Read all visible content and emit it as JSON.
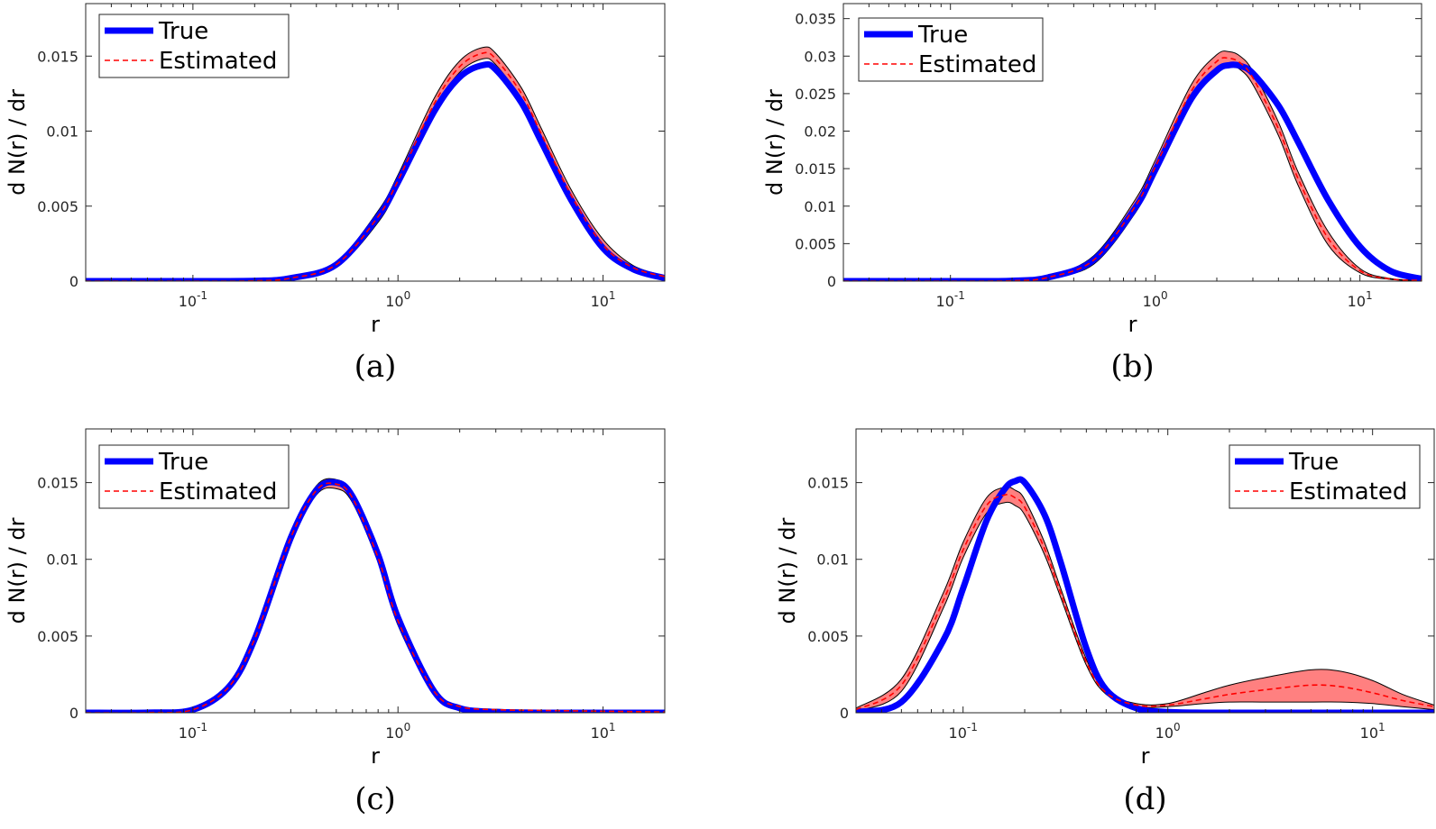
{
  "chart_data": [
    {
      "type": "line",
      "panel_label": "(a)",
      "xlabel": "r",
      "ylabel": "d N(r) / dr",
      "x_scale": "log",
      "xlim": [
        0.03,
        20
      ],
      "ylim": [
        0,
        0.0185
      ],
      "y_ticks": [
        "0",
        "0.005",
        "0.01",
        "0.015"
      ],
      "x_ticks": [
        {
          "base": "10",
          "exp": "-1",
          "value": 0.1
        },
        {
          "base": "10",
          "exp": "0",
          "value": 1
        },
        {
          "base": "10",
          "exp": "1",
          "value": 10
        }
      ],
      "legend_position": "top-left",
      "grid": false,
      "x": [
        0.03,
        0.05,
        0.1,
        0.2,
        0.3,
        0.5,
        0.8,
        1.0,
        1.5,
        2.0,
        2.6,
        3.0,
        4.0,
        5.0,
        7.0,
        10,
        14,
        20
      ],
      "series": [
        {
          "name": "True",
          "color": "#0000ff",
          "style": "solid",
          "values": [
            0,
            0,
            0,
            2e-05,
            0.0002,
            0.0011,
            0.0043,
            0.0066,
            0.0113,
            0.0136,
            0.0144,
            0.0141,
            0.0119,
            0.0093,
            0.0054,
            0.0022,
            0.0008,
            0.0002
          ]
        },
        {
          "name": "Estimated",
          "color": "#ff0000",
          "style": "dashed",
          "values": [
            0,
            0,
            0,
            2e-05,
            0.0002,
            0.0011,
            0.0043,
            0.0067,
            0.0118,
            0.0143,
            0.0152,
            0.0148,
            0.0125,
            0.0098,
            0.0057,
            0.0024,
            0.0009,
            0.0003
          ]
        }
      ],
      "band_halfwidth_fraction": 0.025,
      "band_color": "#ff8080"
    },
    {
      "type": "line",
      "panel_label": "(b)",
      "xlabel": "r",
      "ylabel": "d N(r) / dr",
      "x_scale": "log",
      "xlim": [
        0.03,
        20
      ],
      "ylim": [
        0,
        0.037
      ],
      "y_ticks": [
        "0",
        "0.005",
        "0.01",
        "0.015",
        "0.02",
        "0.025",
        "0.03",
        "0.035"
      ],
      "x_ticks": [
        {
          "base": "10",
          "exp": "-1",
          "value": 0.1
        },
        {
          "base": "10",
          "exp": "0",
          "value": 1
        },
        {
          "base": "10",
          "exp": "1",
          "value": 10
        }
      ],
      "legend_position": "top-left",
      "grid": false,
      "x": [
        0.03,
        0.05,
        0.1,
        0.2,
        0.3,
        0.5,
        0.8,
        1.0,
        1.5,
        2.0,
        2.3,
        2.6,
        3.0,
        4.0,
        5.0,
        7.0,
        10,
        14,
        20
      ],
      "series": [
        {
          "name": "True",
          "color": "#0000ff",
          "style": "solid",
          "values": [
            0,
            0,
            0,
            5e-05,
            0.0005,
            0.0028,
            0.0098,
            0.0148,
            0.0243,
            0.0281,
            0.0288,
            0.0287,
            0.0277,
            0.0234,
            0.0185,
            0.0108,
            0.0046,
            0.0014,
            0.0003
          ]
        },
        {
          "name": "Estimated",
          "color": "#ff0000",
          "style": "dashed",
          "values": [
            0,
            0,
            0,
            5e-05,
            0.0005,
            0.0028,
            0.01,
            0.0152,
            0.0253,
            0.0293,
            0.0297,
            0.0291,
            0.0271,
            0.0203,
            0.0136,
            0.0057,
            0.0014,
            0.0003,
            0.0001
          ]
        }
      ],
      "band_halfwidth_fraction": 0.03,
      "band_color": "#ff8080"
    },
    {
      "type": "line",
      "panel_label": "(c)",
      "xlabel": "r",
      "ylabel": "d N(r) / dr",
      "x_scale": "log",
      "xlim": [
        0.03,
        20
      ],
      "ylim": [
        0,
        0.0185
      ],
      "y_ticks": [
        "0",
        "0.005",
        "0.01",
        "0.015"
      ],
      "x_ticks": [
        {
          "base": "10",
          "exp": "-1",
          "value": 0.1
        },
        {
          "base": "10",
          "exp": "0",
          "value": 1
        },
        {
          "base": "10",
          "exp": "1",
          "value": 10
        }
      ],
      "legend_position": "top-left",
      "grid": false,
      "x": [
        0.03,
        0.06,
        0.1,
        0.15,
        0.2,
        0.3,
        0.4,
        0.5,
        0.6,
        0.8,
        1.0,
        1.5,
        2.0,
        3.0,
        5.0,
        10,
        20
      ],
      "series": [
        {
          "name": "True",
          "color": "#0000ff",
          "style": "solid",
          "values": [
            0,
            1e-05,
            0.0002,
            0.0017,
            0.0048,
            0.0114,
            0.0145,
            0.015,
            0.0141,
            0.0103,
            0.0062,
            0.0014,
            0.0003,
            5e-05,
            0,
            0,
            0
          ]
        },
        {
          "name": "Estimated",
          "color": "#ff0000",
          "style": "dashed",
          "values": [
            0,
            1e-05,
            0.0002,
            0.0017,
            0.0048,
            0.0114,
            0.0145,
            0.0149,
            0.014,
            0.0101,
            0.006,
            0.0014,
            0.0004,
            0.0002,
            0.00015,
            0.0001,
            5e-05
          ]
        }
      ],
      "band_halfwidth_fraction": 0.02,
      "band_color": "#ff8080"
    },
    {
      "type": "line",
      "panel_label": "(d)",
      "xlabel": "r",
      "ylabel": "d N(r) / dr",
      "x_scale": "log",
      "xlim": [
        0.03,
        20
      ],
      "ylim": [
        0,
        0.0185
      ],
      "y_ticks": [
        "0",
        "0.005",
        "0.01",
        "0.015"
      ],
      "x_ticks": [
        {
          "base": "10",
          "exp": "-1",
          "value": 0.1
        },
        {
          "base": "10",
          "exp": "0",
          "value": 1
        },
        {
          "base": "10",
          "exp": "1",
          "value": 10
        }
      ],
      "legend_position": "top-right",
      "grid": false,
      "x": [
        0.03,
        0.05,
        0.08,
        0.1,
        0.13,
        0.16,
        0.18,
        0.2,
        0.25,
        0.3,
        0.4,
        0.5,
        0.7,
        1.0,
        1.5,
        2.0,
        3.0,
        5.0,
        7.0,
        10,
        14,
        20
      ],
      "series": [
        {
          "name": "True",
          "color": "#0000ff",
          "style": "solid",
          "values": [
            5e-05,
            0.0007,
            0.0047,
            0.0081,
            0.0125,
            0.0146,
            0.0151,
            0.015,
            0.0129,
            0.0098,
            0.0042,
            0.0015,
            0.0003,
            5e-05,
            0,
            0,
            0,
            0,
            0,
            0,
            0,
            0
          ]
        },
        {
          "name": "Estimated",
          "color": "#ff0000",
          "style": "dashed",
          "values": [
            0.0002,
            0.0018,
            0.0073,
            0.0106,
            0.0135,
            0.0142,
            0.014,
            0.0134,
            0.0107,
            0.0078,
            0.0033,
            0.0013,
            0.0005,
            0.0005,
            0.0009,
            0.0012,
            0.0015,
            0.0018,
            0.0017,
            0.0013,
            0.0008,
            0.0004
          ]
        }
      ],
      "band_lower": [
        0.0001,
        0.0014,
        0.0068,
        0.0101,
        0.013,
        0.0137,
        0.0135,
        0.0129,
        0.0103,
        0.0075,
        0.0031,
        0.0012,
        0.0004,
        0.0004,
        0.0006,
        0.0007,
        0.0007,
        0.0007,
        0.0007,
        0.0006,
        0.0004,
        0.0002
      ],
      "band_upper": [
        0.0003,
        0.0022,
        0.0078,
        0.0111,
        0.014,
        0.0147,
        0.0145,
        0.0139,
        0.0111,
        0.0081,
        0.0035,
        0.0014,
        0.0006,
        0.0006,
        0.0013,
        0.0018,
        0.0023,
        0.0028,
        0.0027,
        0.0021,
        0.0012,
        0.0005
      ],
      "band_color": "#ff8080"
    }
  ]
}
